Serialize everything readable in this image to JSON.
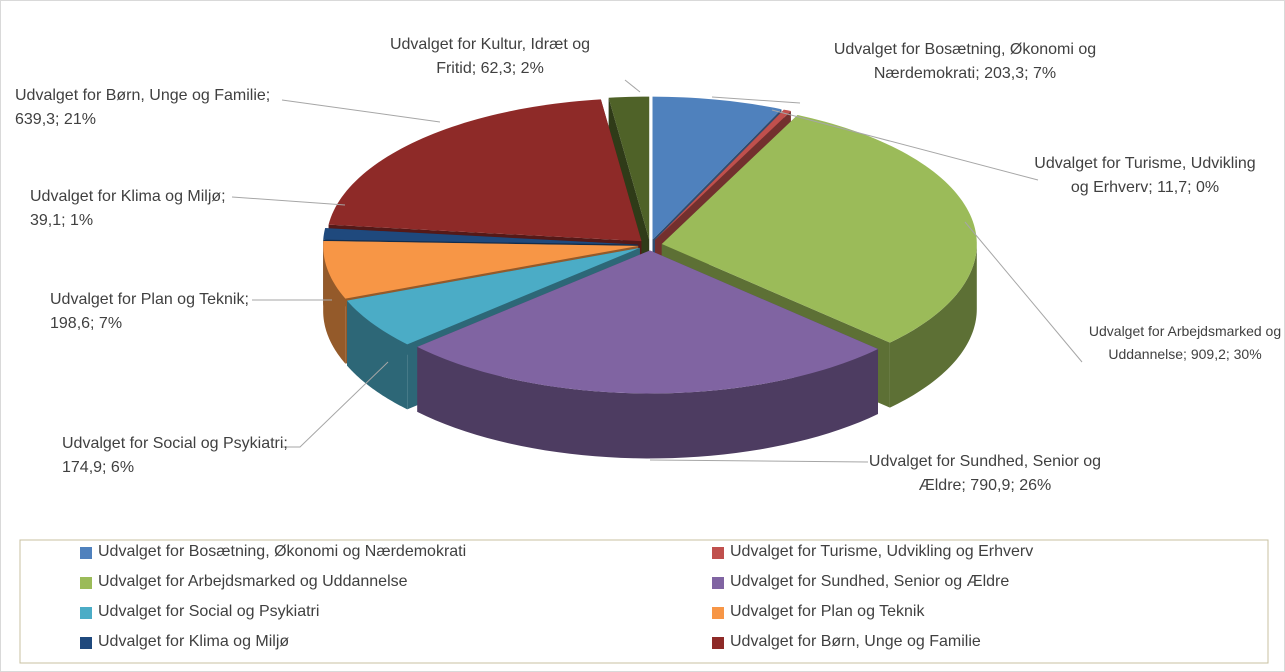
{
  "chart_data": {
    "type": "pie3d",
    "categories": [
      "Udvalget for Bosætning, Økonomi og Nærdemokrati",
      "Udvalget for Turisme, Udvikling og Erhverv",
      "Udvalget for Arbejdsmarked og Uddannelse",
      "Udvalget for Sundhed, Senior og Ældre",
      "Udvalget for Social og Psykiatri",
      "Udvalget for Plan og Teknik",
      "Udvalget for Klima og Miljø",
      "Udvalget for Børn, Unge og Familie",
      "Udvalget for Kultur, Idræt og Fritid"
    ],
    "values": [
      203.3,
      11.7,
      909.2,
      790.9,
      174.9,
      198.6,
      39.1,
      639.3,
      62.3
    ],
    "value_labels": [
      "Udvalget for Bosætning, Økonomi og Nærdemokrati; 203,3; 7%",
      "Udvalget for Turisme, Udvikling og Erhverv; 11,7; 0%",
      "Udvalget for Arbejdsmarked og Uddannelse; 909,2; 30%",
      "Udvalget for Sundhed, Senior og Ældre; 790,9; 26%",
      "Udvalget for Social og Psykiatri; 174,9; 6%",
      "Udvalget for Plan og Teknik; 198,6; 7%",
      "Udvalget for Klima og Miljø; 39,1; 1%",
      "Udvalget for Børn, Unge og Familie; 639,3; 21%",
      "Udvalget for Kultur, Idræt og Fritid; 62,3; 2%"
    ],
    "colors": [
      "#4f81bd",
      "#c0504d",
      "#9bbb59",
      "#8064a2",
      "#4bacc6",
      "#f79646",
      "#1f497d",
      "#8e2a28",
      "#4f6228"
    ],
    "legend_categories": [
      0,
      1,
      2,
      3,
      4,
      5,
      6,
      7
    ],
    "legend": "bottom"
  }
}
